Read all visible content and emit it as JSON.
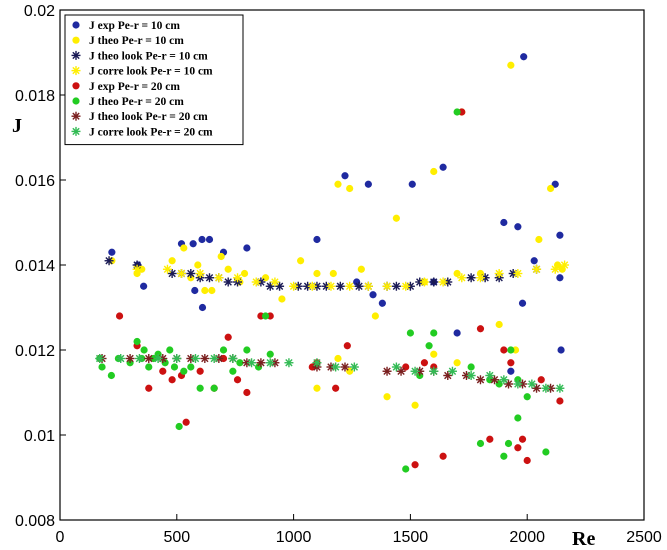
{
  "chart_data": {
    "type": "scatter",
    "xlabel": "Re",
    "ylabel": "J",
    "xlim": [
      0,
      2500
    ],
    "ylim": [
      0.008,
      0.02
    ],
    "x_ticks": [
      "0",
      "500",
      "1000",
      "1500",
      "2000",
      "2500"
    ],
    "y_ticks": [
      "0.008",
      "0.01",
      "0.012",
      "0.014",
      "0.016",
      "0.018",
      "0.02"
    ],
    "grid": false,
    "legend_position": "top-left",
    "series": [
      {
        "name": "J exp Pe-r = 10 cm",
        "color": "#1f2aa0",
        "marker": "circle",
        "points": [
          [
            222,
            0.0143
          ],
          [
            333,
            0.014
          ],
          [
            358,
            0.0135
          ],
          [
            520,
            0.0145
          ],
          [
            570,
            0.0145
          ],
          [
            608,
            0.0146
          ],
          [
            640,
            0.0146
          ],
          [
            577,
            0.0134
          ],
          [
            610,
            0.013
          ],
          [
            700,
            0.0143
          ],
          [
            800,
            0.0144
          ],
          [
            1100,
            0.0146
          ],
          [
            1220,
            0.0161
          ],
          [
            1320,
            0.0159
          ],
          [
            1508,
            0.0159
          ],
          [
            1640,
            0.0163
          ],
          [
            1270,
            0.0136
          ],
          [
            1340,
            0.0133
          ],
          [
            1380,
            0.0131
          ],
          [
            1600,
            0.0136
          ],
          [
            1700,
            0.0124
          ],
          [
            1930,
            0.0115
          ],
          [
            1960,
            0.0149
          ],
          [
            1985,
            0.0189
          ],
          [
            2030,
            0.0141
          ],
          [
            2120,
            0.0159
          ],
          [
            2140,
            0.0147
          ],
          [
            2140,
            0.0137
          ],
          [
            2145,
            0.012
          ],
          [
            1980,
            0.0131
          ],
          [
            1900,
            0.015
          ]
        ]
      },
      {
        "name": "J theo Pe-r = 10 cm",
        "color": "#ffee00",
        "marker": "circle",
        "points": [
          [
            222,
            0.0141
          ],
          [
            330,
            0.0138
          ],
          [
            350,
            0.0139
          ],
          [
            480,
            0.0141
          ],
          [
            530,
            0.0144
          ],
          [
            560,
            0.0137
          ],
          [
            590,
            0.014
          ],
          [
            620,
            0.0134
          ],
          [
            650,
            0.0134
          ],
          [
            690,
            0.0142
          ],
          [
            720,
            0.0139
          ],
          [
            770,
            0.0136
          ],
          [
            790,
            0.0138
          ],
          [
            880,
            0.0137
          ],
          [
            950,
            0.0132
          ],
          [
            1030,
            0.0141
          ],
          [
            1100,
            0.0138
          ],
          [
            1170,
            0.0138
          ],
          [
            1190,
            0.0159
          ],
          [
            1240,
            0.0158
          ],
          [
            1290,
            0.0139
          ],
          [
            1350,
            0.0128
          ],
          [
            1440,
            0.0151
          ],
          [
            1560,
            0.0136
          ],
          [
            1600,
            0.0162
          ],
          [
            1700,
            0.0138
          ],
          [
            1720,
            0.0176
          ],
          [
            1800,
            0.0138
          ],
          [
            1880,
            0.0126
          ],
          [
            1930,
            0.0187
          ],
          [
            2050,
            0.0146
          ],
          [
            2100,
            0.0158
          ],
          [
            2130,
            0.014
          ],
          [
            2150,
            0.0139
          ],
          [
            1100,
            0.0111
          ],
          [
            1190,
            0.0118
          ],
          [
            1240,
            0.0115
          ],
          [
            1520,
            0.0107
          ],
          [
            1400,
            0.0109
          ],
          [
            1950,
            0.012
          ],
          [
            1600,
            0.0119
          ],
          [
            1700,
            0.0117
          ]
        ]
      },
      {
        "name": "J theo look Pe-r = 10 cm",
        "color": "#1a1a55",
        "marker": "star",
        "points": [
          [
            210,
            0.0141
          ],
          [
            330,
            0.014
          ],
          [
            480,
            0.0138
          ],
          [
            520,
            0.0138
          ],
          [
            560,
            0.0138
          ],
          [
            600,
            0.0137
          ],
          [
            640,
            0.0137
          ],
          [
            680,
            0.0137
          ],
          [
            720,
            0.0136
          ],
          [
            760,
            0.0136
          ],
          [
            860,
            0.0136
          ],
          [
            900,
            0.0135
          ],
          [
            940,
            0.0135
          ],
          [
            1020,
            0.0135
          ],
          [
            1060,
            0.0135
          ],
          [
            1100,
            0.0135
          ],
          [
            1140,
            0.0135
          ],
          [
            1200,
            0.0135
          ],
          [
            1280,
            0.0135
          ],
          [
            1320,
            0.0135
          ],
          [
            1400,
            0.0135
          ],
          [
            1440,
            0.0135
          ],
          [
            1500,
            0.0135
          ],
          [
            1540,
            0.0136
          ],
          [
            1600,
            0.0136
          ],
          [
            1660,
            0.0136
          ],
          [
            1760,
            0.0137
          ],
          [
            1820,
            0.0137
          ],
          [
            1880,
            0.0137
          ],
          [
            1940,
            0.0138
          ],
          [
            2040,
            0.0139
          ]
        ]
      },
      {
        "name": "J corre look Pe-r = 10 cm",
        "color": "#ffee00",
        "marker": "star",
        "points": [
          [
            330,
            0.0139
          ],
          [
            460,
            0.0139
          ],
          [
            520,
            0.0138
          ],
          [
            600,
            0.0138
          ],
          [
            680,
            0.0137
          ],
          [
            760,
            0.0137
          ],
          [
            840,
            0.0136
          ],
          [
            920,
            0.0136
          ],
          [
            1000,
            0.0135
          ],
          [
            1080,
            0.0135
          ],
          [
            1160,
            0.0135
          ],
          [
            1240,
            0.0135
          ],
          [
            1320,
            0.0135
          ],
          [
            1400,
            0.0135
          ],
          [
            1480,
            0.0135
          ],
          [
            1560,
            0.0136
          ],
          [
            1640,
            0.0136
          ],
          [
            1720,
            0.0137
          ],
          [
            1800,
            0.0137
          ],
          [
            1880,
            0.0138
          ],
          [
            1960,
            0.0138
          ],
          [
            2040,
            0.0139
          ],
          [
            2120,
            0.0139
          ],
          [
            2160,
            0.014
          ]
        ]
      },
      {
        "name": "J exp Pe-r = 20 cm",
        "color": "#cc1111",
        "marker": "circle",
        "points": [
          [
            255,
            0.0128
          ],
          [
            330,
            0.0121
          ],
          [
            380,
            0.0111
          ],
          [
            440,
            0.0115
          ],
          [
            480,
            0.0113
          ],
          [
            520,
            0.0114
          ],
          [
            540,
            0.0103
          ],
          [
            600,
            0.0115
          ],
          [
            660,
            0.0111
          ],
          [
            700,
            0.0118
          ],
          [
            720,
            0.0123
          ],
          [
            760,
            0.0113
          ],
          [
            800,
            0.011
          ],
          [
            860,
            0.0128
          ],
          [
            900,
            0.0128
          ],
          [
            1080,
            0.0116
          ],
          [
            1100,
            0.0117
          ],
          [
            1180,
            0.0111
          ],
          [
            1230,
            0.0121
          ],
          [
            1480,
            0.0116
          ],
          [
            1520,
            0.0093
          ],
          [
            1560,
            0.0117
          ],
          [
            1600,
            0.0116
          ],
          [
            1640,
            0.0095
          ],
          [
            1720,
            0.0176
          ],
          [
            1800,
            0.0125
          ],
          [
            1840,
            0.0099
          ],
          [
            1900,
            0.012
          ],
          [
            1930,
            0.0117
          ],
          [
            1960,
            0.0097
          ],
          [
            1980,
            0.0099
          ],
          [
            2000,
            0.0094
          ],
          [
            2060,
            0.0113
          ],
          [
            2140,
            0.0108
          ]
        ]
      },
      {
        "name": "J theo Pe-r = 20 cm",
        "color": "#22cc22",
        "marker": "circle",
        "points": [
          [
            170,
            0.0118
          ],
          [
            180,
            0.0116
          ],
          [
            220,
            0.0114
          ],
          [
            250,
            0.0118
          ],
          [
            300,
            0.0117
          ],
          [
            330,
            0.0122
          ],
          [
            350,
            0.0118
          ],
          [
            360,
            0.012
          ],
          [
            380,
            0.0116
          ],
          [
            400,
            0.0118
          ],
          [
            420,
            0.0119
          ],
          [
            450,
            0.0117
          ],
          [
            470,
            0.012
          ],
          [
            490,
            0.0116
          ],
          [
            510,
            0.0102
          ],
          [
            530,
            0.0115
          ],
          [
            560,
            0.0116
          ],
          [
            600,
            0.0111
          ],
          [
            660,
            0.0111
          ],
          [
            700,
            0.012
          ],
          [
            740,
            0.0115
          ],
          [
            770,
            0.0117
          ],
          [
            800,
            0.012
          ],
          [
            850,
            0.0116
          ],
          [
            880,
            0.0128
          ],
          [
            900,
            0.0119
          ],
          [
            1480,
            0.0092
          ],
          [
            1500,
            0.0124
          ],
          [
            1540,
            0.0114
          ],
          [
            1580,
            0.0121
          ],
          [
            1600,
            0.0124
          ],
          [
            1700,
            0.0176
          ],
          [
            1760,
            0.0116
          ],
          [
            1800,
            0.0098
          ],
          [
            1840,
            0.0113
          ],
          [
            1880,
            0.0112
          ],
          [
            1900,
            0.0095
          ],
          [
            1920,
            0.0098
          ],
          [
            1960,
            0.0104
          ],
          [
            2000,
            0.0109
          ],
          [
            2080,
            0.0096
          ],
          [
            1960,
            0.0113
          ],
          [
            1930,
            0.012
          ]
        ]
      },
      {
        "name": "J theo look Pe-r = 20 cm",
        "color": "#7a1f1f",
        "marker": "star",
        "points": [
          [
            180,
            0.0118
          ],
          [
            300,
            0.0118
          ],
          [
            380,
            0.0118
          ],
          [
            440,
            0.0118
          ],
          [
            500,
            0.0118
          ],
          [
            560,
            0.0118
          ],
          [
            620,
            0.0118
          ],
          [
            680,
            0.0118
          ],
          [
            740,
            0.0118
          ],
          [
            800,
            0.0117
          ],
          [
            860,
            0.0117
          ],
          [
            920,
            0.0117
          ],
          [
            1100,
            0.0116
          ],
          [
            1160,
            0.0116
          ],
          [
            1220,
            0.0116
          ],
          [
            1400,
            0.0115
          ],
          [
            1460,
            0.0115
          ],
          [
            1540,
            0.0115
          ],
          [
            1600,
            0.0115
          ],
          [
            1660,
            0.0114
          ],
          [
            1740,
            0.0114
          ],
          [
            1800,
            0.0113
          ],
          [
            1860,
            0.0113
          ],
          [
            1920,
            0.0112
          ],
          [
            1980,
            0.0112
          ],
          [
            2040,
            0.0111
          ],
          [
            2100,
            0.0111
          ]
        ]
      },
      {
        "name": "J corre look Pe-r = 20 cm",
        "color": "#33bb55",
        "marker": "star",
        "points": [
          [
            170,
            0.0118
          ],
          [
            260,
            0.0118
          ],
          [
            340,
            0.0118
          ],
          [
            420,
            0.0118
          ],
          [
            500,
            0.0118
          ],
          [
            580,
            0.0118
          ],
          [
            660,
            0.0118
          ],
          [
            740,
            0.0118
          ],
          [
            820,
            0.0117
          ],
          [
            900,
            0.0117
          ],
          [
            980,
            0.0117
          ],
          [
            1100,
            0.0117
          ],
          [
            1180,
            0.0116
          ],
          [
            1260,
            0.0116
          ],
          [
            1440,
            0.0116
          ],
          [
            1520,
            0.0115
          ],
          [
            1600,
            0.0115
          ],
          [
            1680,
            0.0115
          ],
          [
            1760,
            0.0114
          ],
          [
            1840,
            0.0114
          ],
          [
            1900,
            0.0113
          ],
          [
            1960,
            0.0112
          ],
          [
            2020,
            0.0112
          ],
          [
            2080,
            0.0111
          ],
          [
            2140,
            0.0111
          ]
        ]
      }
    ]
  }
}
